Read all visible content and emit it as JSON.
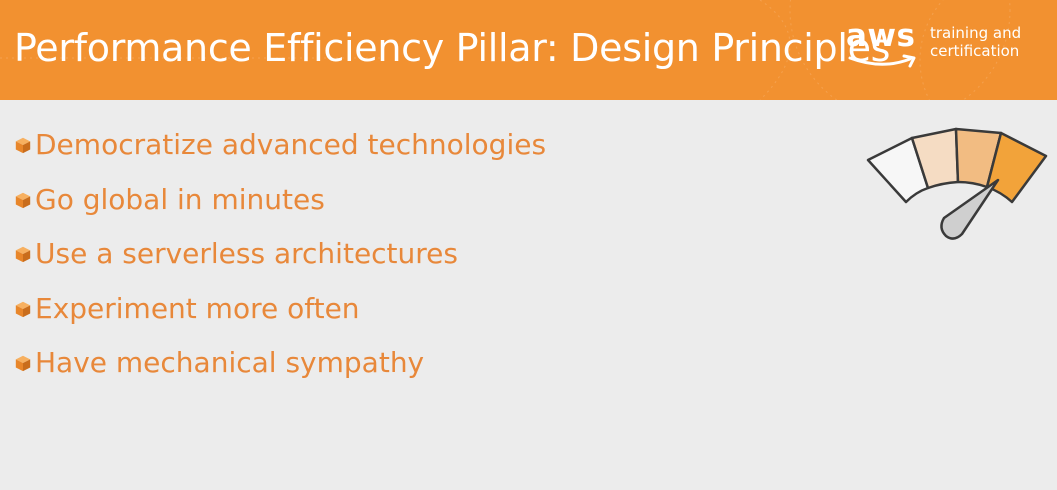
{
  "header": {
    "title": "Performance Efficiency Pillar: Design Principles"
  },
  "brand": {
    "wordmark": "aws",
    "tagline_line1": "training and",
    "tagline_line2": "certification"
  },
  "bullets": [
    {
      "text": "Democratize advanced technologies",
      "icon": "cube-icon"
    },
    {
      "text": "Go global in minutes",
      "icon": "cube-icon"
    },
    {
      "text": "Use a serverless architectures",
      "icon": "cube-icon"
    },
    {
      "text": "Experiment more often",
      "icon": "cube-icon"
    },
    {
      "text": "Have mechanical sympathy",
      "icon": "cube-icon"
    }
  ],
  "gauge": {
    "icon": "speedometer-icon",
    "segments": 4,
    "segment_colors": [
      "#f7f7f7",
      "#f5dcc3",
      "#f2bc82",
      "#f2a33a"
    ]
  },
  "colors": {
    "header": "#f29130",
    "background": "#ececec",
    "bullet_text": "#e8883a",
    "bullet_icon": "#f29a2e"
  }
}
